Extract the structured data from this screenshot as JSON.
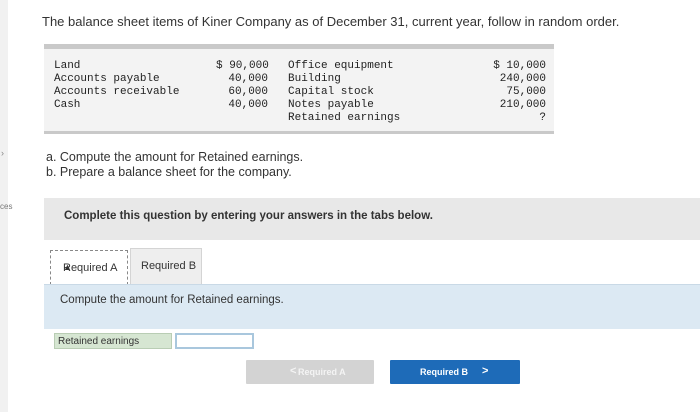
{
  "edge": {
    "tab_label": "ces"
  },
  "intro": "The balance sheet items of Kiner Company as of December 31, current year, follow in random order.",
  "items_left": [
    {
      "label": "Land",
      "value": "$ 90,000"
    },
    {
      "label": "Accounts payable",
      "value": "40,000"
    },
    {
      "label": "Accounts receivable",
      "value": "60,000"
    },
    {
      "label": "Cash",
      "value": "40,000"
    }
  ],
  "items_right": [
    {
      "label": "Office equipment",
      "value": "$ 10,000"
    },
    {
      "label": "Building",
      "value": "240,000"
    },
    {
      "label": "Capital stock",
      "value": "75,000"
    },
    {
      "label": "Notes payable",
      "value": "210,000"
    },
    {
      "label": "Retained earnings",
      "value": "?"
    }
  ],
  "questions": {
    "a": "a. Compute the amount for Retained earnings.",
    "b": "b. Prepare a balance sheet for the company."
  },
  "instruction": "Complete this question by entering your answers in the tabs below.",
  "tabs": [
    {
      "label": "Required A",
      "active": true
    },
    {
      "label": "Required B",
      "active": false
    }
  ],
  "panel_prompt": "Compute the amount for Retained earnings.",
  "answer": {
    "label": "Retained earnings",
    "value": ""
  },
  "nav": {
    "prev_label": "Required A",
    "next_label": "Required B",
    "prev_chevron": "<",
    "next_chevron": ">"
  },
  "colors": {
    "next_button": "#1e6bb8",
    "panel": "#dce9f3",
    "answer_label_bg": "#d6e6d2"
  }
}
